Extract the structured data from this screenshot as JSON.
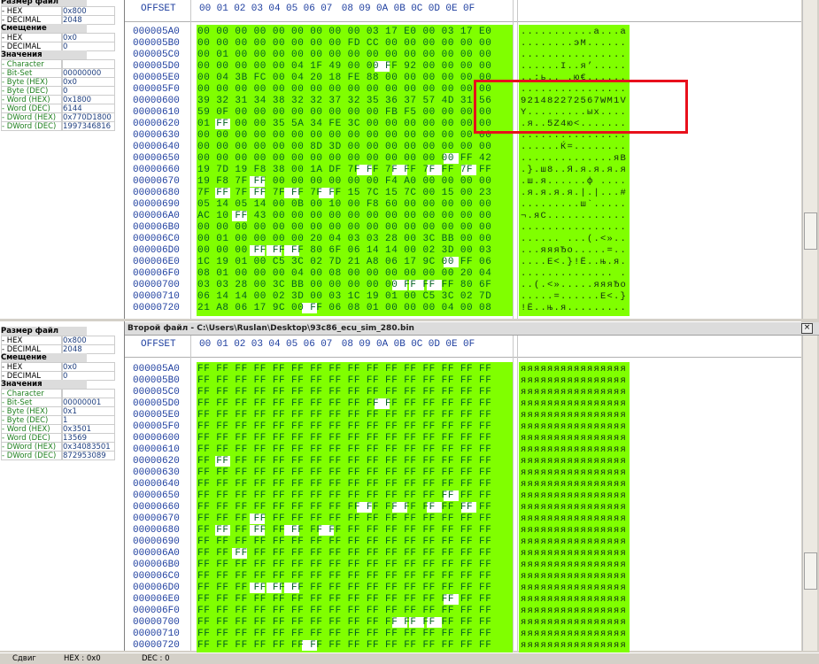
{
  "header": {
    "offset": "OFFSET",
    "columns": [
      "00",
      "01",
      "02",
      "03",
      "04",
      "05",
      "06",
      "07",
      "08",
      "09",
      "0A",
      "0B",
      "0C",
      "0D",
      "0E",
      "0F"
    ]
  },
  "offsets": [
    "000005A0",
    "000005B0",
    "000005C0",
    "000005D0",
    "000005E0",
    "000005F0",
    "00000600",
    "00000610",
    "00000620",
    "00000630",
    "00000640",
    "00000650",
    "00000660",
    "00000670",
    "00000680",
    "00000690",
    "000006A0",
    "000006B0",
    "000006C0",
    "000006D0",
    "000006E0",
    "000006F0",
    "00000700",
    "00000710",
    "00000720"
  ],
  "panes": [
    {
      "info": [
        {
          "heading": "Размер файл",
          "items": [
            {
              "label": "- HEX",
              "value": "0x800"
            },
            {
              "label": "- DECIMAL",
              "value": "2048"
            }
          ]
        },
        {
          "heading": "Смещение",
          "items": [
            {
              "label": "- HEX",
              "value": "0x0"
            },
            {
              "label": "- DECIMAL",
              "value": "0"
            }
          ]
        },
        {
          "heading": "Значения",
          "items": [
            {
              "label": "- Character"
            },
            {
              "label": "- Bit-Set",
              "value": "00000000"
            },
            {
              "label": "- Byte (HEX)",
              "value": "0x0"
            },
            {
              "label": "- Byte (DEC)",
              "value": "0"
            },
            {
              "label": "- Word (HEX)",
              "value": "0x1800"
            },
            {
              "label": "- Word (DEC)",
              "value": "6144"
            },
            {
              "label": "- DWord (HEX)",
              "value": "0x770D1800"
            },
            {
              "label": "- DWord (DEC)",
              "value": "1997346816"
            }
          ]
        }
      ],
      "bytes": [
        "00 00 00 00 00 00 00 00 00 03 17 E0 00 03 17 E0",
        "00 00 00 00 00 00 00 00 FD CC 00 00 00 00 00 00",
        "00 01 00 00 00 00 00 00 00 00 00 00 00 00 00 00",
        "00 00 00 00 00 04 1F 49 00 00 FF 92 00 00 00 00",
        "00 04 3B FC 00 04 20 18 FE 88 00 00 00 00 00 00",
        "00 00 00 00 00 00 00 00 00 00 00 00 00 00 00 00",
        "39 32 31 34 38 32 32 37 32 35 36 37 57 4D 31 56",
        "59 0F 00 00 00 00 00 00 00 00 FB F5 00 00 00 00",
        "01 FF 00 00 35 5A 34 FE 3C 00 00 00 00 00 00 00",
        "00 00 00 00 00 00 00 00 00 00 00 00 00 00 00 00",
        "00 00 00 00 00 00 8D 3D 00 00 00 00 00 00 00 00",
        "00 00 00 00 00 00 00 00 00 00 00 00 00 00 FF 42",
        "19 7D 19 F8 38 00 1A DF 7F FF 7F FF 7F FF 7F FF",
        "19 F8 7F FF 00 00 00 00 00 00 F4 A0 00 00 00 00",
        "7F FF 7F FF 7F FF 7F FF 15 7C 15 7C 00 15 00 23",
        "05 14 05 14 00 0B 00 10 00 F8 60 00 00 00 00 00",
        "AC 10 FF 43 00 00 00 00 00 00 00 00 00 00 00 00",
        "00 00 00 00 00 00 00 00 00 00 00 00 00 00 00 00",
        "00 01 00 00 00 00 20 04 03 03 28 00 3C BB 00 00",
        "00 00 00 FF FF FF 80 6F 06 14 14 00 02 3D 00 03",
        "1C 19 01 00 C5 3C 02 7D 21 A8 06 17 9C 00 FF 06",
        "08 01 00 00 00 04 00 08 00 00 00 00 00 00 20 04",
        "03 03 28 00 3C BB 00 00 00 00 00 FF FF FF 80 6F",
        "06 14 14 00 02 3D 00 03 1C 19 01 00 C5 3C 02 7D",
        "21 A8 06 17 9C 00 FF 06 08 01 00 00 00 04 00 08"
      ],
      "ascii": [
        "...........а...а",
        "........эМ......",
        "................",
        "......I..я’.....",
        "..;ь.. .ю€......",
        "................",
        "921482272567WM1V",
        "Y.........ых....",
        ".я..5Z4ю<.......",
        "................",
        "......Ќ=........",
        "..............яB",
        ".}.ш8..Я.я.я.я.я",
        ".ш.я......ф ....",
        ".я.я.я.я.|.|...#",
        ".........ш`.....",
        "¬.яC............",
        "................",
        "...... ...(.<»..",
        "...яяяЂo.....=..",
        "....Е<.}!Ё..њ.я.",
        ".............. .",
        "..(.<».....яяяЂo",
        ".....=......Е<.}",
        "!Ё..њ.я........."
      ]
    },
    {
      "title": "Второй файл - C:\\Users\\Ruslan\\Desktop\\93c86_ecu_sim_280.bin",
      "info": [
        {
          "heading": "Размер файл",
          "items": [
            {
              "label": "- HEX",
              "value": "0x800"
            },
            {
              "label": "- DECIMAL",
              "value": "2048"
            }
          ]
        },
        {
          "heading": "Смещение",
          "items": [
            {
              "label": "- HEX",
              "value": "0x0"
            },
            {
              "label": "- DECIMAL",
              "value": "0"
            }
          ]
        },
        {
          "heading": "Значения",
          "items": [
            {
              "label": "- Character"
            },
            {
              "label": "- Bit-Set",
              "value": "00000001"
            },
            {
              "label": "- Byte (HEX)",
              "value": "0x1"
            },
            {
              "label": "- Byte (DEC)",
              "value": "1"
            },
            {
              "label": "- Word (HEX)",
              "value": "0x3501"
            },
            {
              "label": "- Word (DEC)",
              "value": "13569"
            },
            {
              "label": "- DWord (HEX)",
              "value": "0x34083501"
            },
            {
              "label": "- DWord (DEC)",
              "value": "872953089"
            }
          ]
        }
      ],
      "bytes": [
        "FF FF FF FF FF FF FF FF FF FF FF FF FF FF FF FF",
        "FF FF FF FF FF FF FF FF FF FF FF FF FF FF FF FF",
        "FF FF FF FF FF FF FF FF FF FF FF FF FF FF FF FF",
        "FF FF FF FF FF FF FF FF FF FF FF FF FF FF FF FF",
        "FF FF FF FF FF FF FF FF FF FF FF FF FF FF FF FF",
        "FF FF FF FF FF FF FF FF FF FF FF FF FF FF FF FF",
        "FF FF FF FF FF FF FF FF FF FF FF FF FF FF FF FF",
        "FF FF FF FF FF FF FF FF FF FF FF FF FF FF FF FF",
        "FF FF FF FF FF FF FF FF FF FF FF FF FF FF FF FF",
        "FF FF FF FF FF FF FF FF FF FF FF FF FF FF FF FF",
        "FF FF FF FF FF FF FF FF FF FF FF FF FF FF FF FF",
        "FF FF FF FF FF FF FF FF FF FF FF FF FF FF FF FF",
        "FF FF FF FF FF FF FF FF FF FF FF FF FF FF FF FF",
        "FF FF FF FF FF FF FF FF FF FF FF FF FF FF FF FF",
        "FF FF FF FF FF FF FF FF FF FF FF FF FF FF FF FF",
        "FF FF FF FF FF FF FF FF FF FF FF FF FF FF FF FF",
        "FF FF FF FF FF FF FF FF FF FF FF FF FF FF FF FF",
        "FF FF FF FF FF FF FF FF FF FF FF FF FF FF FF FF",
        "FF FF FF FF FF FF FF FF FF FF FF FF FF FF FF FF",
        "FF FF FF FF FF FF FF FF FF FF FF FF FF FF FF FF",
        "FF FF FF FF FF FF FF FF FF FF FF FF FF FF FF FF",
        "FF FF FF FF FF FF FF FF FF FF FF FF FF FF FF FF",
        "FF FF FF FF FF FF FF FF FF FF FF FF FF FF FF FF",
        "FF FF FF FF FF FF FF FF FF FF FF FF FF FF FF FF",
        "FF FF FF FF FF FF FF FF FF FF FF FF FF FF FF FF"
      ],
      "ascii": [
        "яяяяяяяяяяяяяяяя",
        "яяяяяяяяяяяяяяяя",
        "яяяяяяяяяяяяяяяя",
        "яяяяяяяяяяяяяяяя",
        "яяяяяяяяяяяяяяяя",
        "яяяяяяяяяяяяяяяя",
        "яяяяяяяяяяяяяяяя",
        "яяяяяяяяяяяяяяяя",
        "яяяяяяяяяяяяяяяя",
        "яяяяяяяяяяяяяяяя",
        "яяяяяяяяяяяяяяяя",
        "яяяяяяяяяяяяяяяя",
        "яяяяяяяяяяяяяяяя",
        "яяяяяяяяяяяяяяяя",
        "яяяяяяяяяяяяяяяя",
        "яяяяяяяяяяяяяяяя",
        "яяяяяяяяяяяяяяяя",
        "яяяяяяяяяяяяяяяя",
        "яяяяяяяяяяяяяяяя",
        "яяяяяяяяяяяяяяяя",
        "яяяяяяяяяяяяяяяя",
        "яяяяяяяяяяяяяяяя",
        "яяяяяяяяяяяяяяяя",
        "яяяяяяяяяяяяяяяя",
        "яяяяяяяяяяяяяяяя"
      ]
    }
  ],
  "status": [
    "Сдвиг",
    "HEX : 0x0",
    "DEC : 0"
  ]
}
